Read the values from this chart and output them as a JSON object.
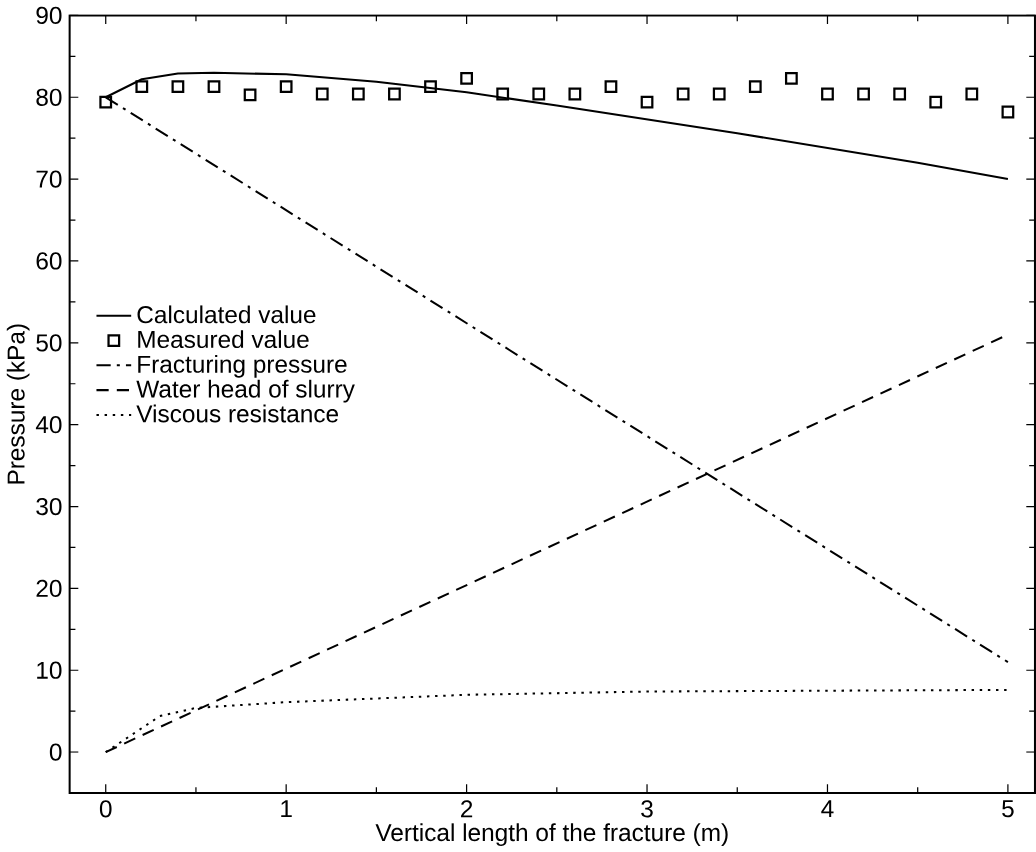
{
  "chart_data": {
    "type": "line",
    "xlabel": "Vertical length of the fracture (m)",
    "ylabel": "Pressure (kPa)",
    "xlim": [
      -0.2,
      5.15
    ],
    "ylim": [
      -5,
      90
    ],
    "xticks": [
      0,
      1,
      2,
      3,
      4,
      5
    ],
    "yticks": [
      0,
      10,
      20,
      30,
      40,
      50,
      60,
      70,
      80,
      90
    ],
    "grid": false,
    "legend": "left",
    "series": [
      {
        "name": "Calculated value",
        "line_style": "solid",
        "color": "#000000",
        "x": [
          0,
          0.2,
          0.4,
          0.6,
          1,
          1.5,
          2,
          2.5,
          3,
          3.5,
          4,
          4.5,
          5
        ],
        "values": [
          80,
          82.2,
          82.9,
          83,
          82.8,
          81.9,
          80.6,
          79,
          77.3,
          75.6,
          73.8,
          72,
          70
        ]
      },
      {
        "name": "Measured value",
        "type": "scatter",
        "marker": "square",
        "color": "#000000",
        "x": [
          0,
          0.2,
          0.4,
          0.6,
          0.8,
          1,
          1.2,
          1.4,
          1.6,
          1.8,
          2,
          2.2,
          2.4,
          2.6,
          2.8,
          3,
          3.2,
          3.4,
          3.6,
          3.8,
          4,
          4.2,
          4.4,
          4.6,
          4.8,
          5
        ],
        "values": [
          79.4,
          81.3,
          81.3,
          81.3,
          80.3,
          81.3,
          80.4,
          80.4,
          80.4,
          81.3,
          82.3,
          80.4,
          80.4,
          80.4,
          81.3,
          79.4,
          80.4,
          80.4,
          81.3,
          82.3,
          80.4,
          80.4,
          80.4,
          79.4,
          80.4,
          78.2
        ]
      },
      {
        "name": "Fracturing pressure",
        "line_style": "dashdotted",
        "color": "#000000",
        "x": [
          0,
          5
        ],
        "values": [
          80,
          11
        ]
      },
      {
        "name": "Water head of slurry",
        "line_style": "dashed",
        "color": "#000000",
        "x": [
          0,
          5
        ],
        "values": [
          0,
          51
        ]
      },
      {
        "name": "Viscous resistance",
        "line_style": "dotted",
        "color": "#000000",
        "x": [
          0,
          0.3,
          0.5,
          1,
          2,
          3,
          4,
          5
        ],
        "values": [
          0,
          4.4,
          5.4,
          6.1,
          7,
          7.4,
          7.5,
          7.6
        ]
      }
    ]
  }
}
